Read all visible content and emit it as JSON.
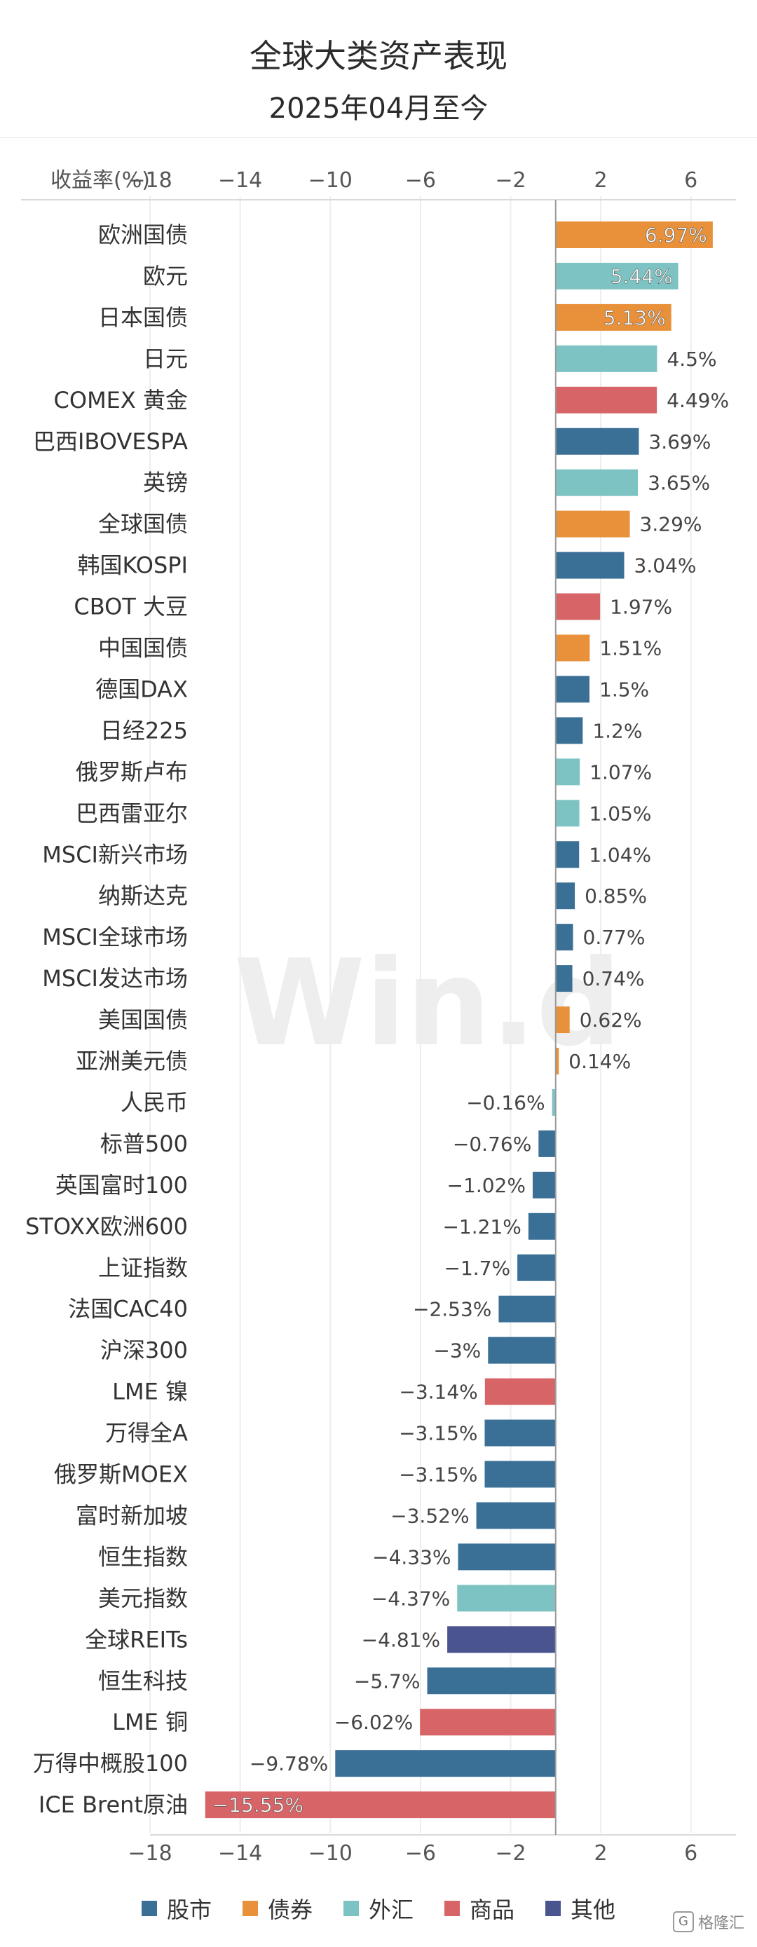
{
  "header": {
    "title": "全球大类资产表现",
    "subtitle": "2025年04月至今"
  },
  "colors": {
    "股市": "#3a6f96",
    "债券": "#e8913a",
    "外汇": "#7ec3c3",
    "商品": "#d76466",
    "其他": "#4a558f"
  },
  "legend": [
    {
      "name": "股市",
      "color": "#3a6f96"
    },
    {
      "name": "债券",
      "color": "#e8913a"
    },
    {
      "name": "外汇",
      "color": "#7ec3c3"
    },
    {
      "name": "商品",
      "color": "#d76466"
    },
    {
      "name": "其他",
      "color": "#4a558f"
    }
  ],
  "watermark": "Win.d",
  "logo": "格隆汇",
  "chart_data": {
    "type": "bar",
    "orientation": "horizontal",
    "xlabel": "收益率(%)",
    "xlim": [
      -18,
      8
    ],
    "xticks": [
      -18,
      -14,
      -10,
      -6,
      -2,
      2,
      6
    ],
    "xtick_labels": [
      "−18",
      "−14",
      "−10",
      "−6",
      "−2",
      "2",
      "6"
    ],
    "grid": true,
    "legend_position": "bottom",
    "bars": [
      {
        "label": "欧洲国债",
        "value": 6.97,
        "text": "6.97%",
        "group": "债券"
      },
      {
        "label": "欧元",
        "value": 5.44,
        "text": "5.44%",
        "group": "外汇"
      },
      {
        "label": "日本国债",
        "value": 5.13,
        "text": "5.13%",
        "group": "债券"
      },
      {
        "label": "日元",
        "value": 4.5,
        "text": "4.5%",
        "group": "外汇"
      },
      {
        "label": "COMEX 黄金",
        "value": 4.49,
        "text": "4.49%",
        "group": "商品"
      },
      {
        "label": "巴西IBOVESPA",
        "value": 3.69,
        "text": "3.69%",
        "group": "股市"
      },
      {
        "label": "英镑",
        "value": 3.65,
        "text": "3.65%",
        "group": "外汇"
      },
      {
        "label": "全球国债",
        "value": 3.29,
        "text": "3.29%",
        "group": "债券"
      },
      {
        "label": "韩国KOSPI",
        "value": 3.04,
        "text": "3.04%",
        "group": "股市"
      },
      {
        "label": "CBOT 大豆",
        "value": 1.97,
        "text": "1.97%",
        "group": "商品"
      },
      {
        "label": "中国国债",
        "value": 1.51,
        "text": "1.51%",
        "group": "债券"
      },
      {
        "label": "德国DAX",
        "value": 1.5,
        "text": "1.5%",
        "group": "股市"
      },
      {
        "label": "日经225",
        "value": 1.2,
        "text": "1.2%",
        "group": "股市"
      },
      {
        "label": "俄罗斯卢布",
        "value": 1.07,
        "text": "1.07%",
        "group": "外汇"
      },
      {
        "label": "巴西雷亚尔",
        "value": 1.05,
        "text": "1.05%",
        "group": "外汇"
      },
      {
        "label": "MSCI新兴市场",
        "value": 1.04,
        "text": "1.04%",
        "group": "股市"
      },
      {
        "label": "纳斯达克",
        "value": 0.85,
        "text": "0.85%",
        "group": "股市"
      },
      {
        "label": "MSCI全球市场",
        "value": 0.77,
        "text": "0.77%",
        "group": "股市"
      },
      {
        "label": "MSCI发达市场",
        "value": 0.74,
        "text": "0.74%",
        "group": "股市"
      },
      {
        "label": "美国国债",
        "value": 0.62,
        "text": "0.62%",
        "group": "债券"
      },
      {
        "label": "亚洲美元债",
        "value": 0.14,
        "text": "0.14%",
        "group": "债券"
      },
      {
        "label": "人民币",
        "value": -0.16,
        "text": "−0.16%",
        "group": "外汇"
      },
      {
        "label": "标普500",
        "value": -0.76,
        "text": "−0.76%",
        "group": "股市"
      },
      {
        "label": "英国富时100",
        "value": -1.02,
        "text": "−1.02%",
        "group": "股市"
      },
      {
        "label": "STOXX欧洲600",
        "value": -1.21,
        "text": "−1.21%",
        "group": "股市"
      },
      {
        "label": "上证指数",
        "value": -1.7,
        "text": "−1.7%",
        "group": "股市"
      },
      {
        "label": "法国CAC40",
        "value": -2.53,
        "text": "−2.53%",
        "group": "股市"
      },
      {
        "label": "沪深300",
        "value": -3,
        "text": "−3%",
        "group": "股市"
      },
      {
        "label": "LME 镍",
        "value": -3.14,
        "text": "−3.14%",
        "group": "商品"
      },
      {
        "label": "万得全A",
        "value": -3.15,
        "text": "−3.15%",
        "group": "股市"
      },
      {
        "label": "俄罗斯MOEX",
        "value": -3.15,
        "text": "−3.15%",
        "group": "股市"
      },
      {
        "label": "富时新加坡",
        "value": -3.52,
        "text": "−3.52%",
        "group": "股市"
      },
      {
        "label": "恒生指数",
        "value": -4.33,
        "text": "−4.33%",
        "group": "股市"
      },
      {
        "label": "美元指数",
        "value": -4.37,
        "text": "−4.37%",
        "group": "外汇"
      },
      {
        "label": "全球REITs",
        "value": -4.81,
        "text": "−4.81%",
        "group": "其他"
      },
      {
        "label": "恒生科技",
        "value": -5.7,
        "text": "−5.7%",
        "group": "股市"
      },
      {
        "label": "LME 铜",
        "value": -6.02,
        "text": "−6.02%",
        "group": "商品"
      },
      {
        "label": "万得中概股100",
        "value": -9.78,
        "text": "−9.78%",
        "group": "股市"
      },
      {
        "label": "ICE Brent原油",
        "value": -15.55,
        "text": "−15.55%",
        "group": "商品"
      }
    ]
  }
}
